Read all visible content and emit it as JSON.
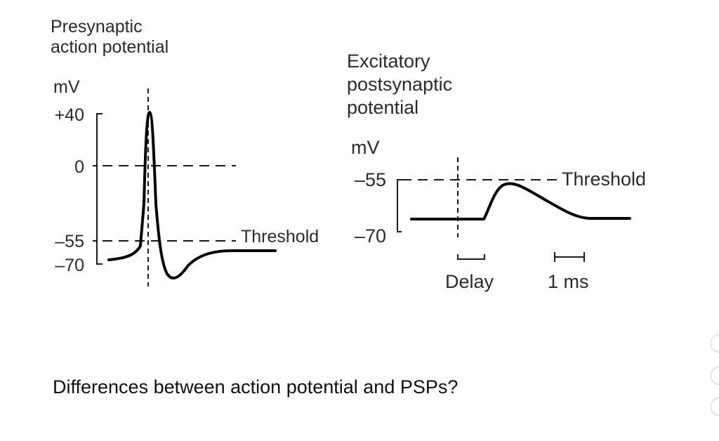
{
  "question": "Differences between action potential and PSPs?",
  "presynaptic": {
    "title_line1": "Presynaptic",
    "title_line2": "action potential",
    "unit": "mV",
    "ticks": [
      "+40",
      "0",
      "–55",
      "–70"
    ],
    "threshold_label": "Threshold"
  },
  "postsynaptic": {
    "title_line1": "Excitatory",
    "title_line2": "postsynaptic",
    "title_line3": "potential",
    "unit": "mV",
    "ticks": [
      "–55",
      "–70"
    ],
    "threshold_label": "Threshold",
    "delay_label": "Delay",
    "scale_label": "1 ms"
  },
  "colors": {
    "trace": "#000000",
    "text": "#2a2a2a",
    "dashed": "#1a1a1a"
  }
}
